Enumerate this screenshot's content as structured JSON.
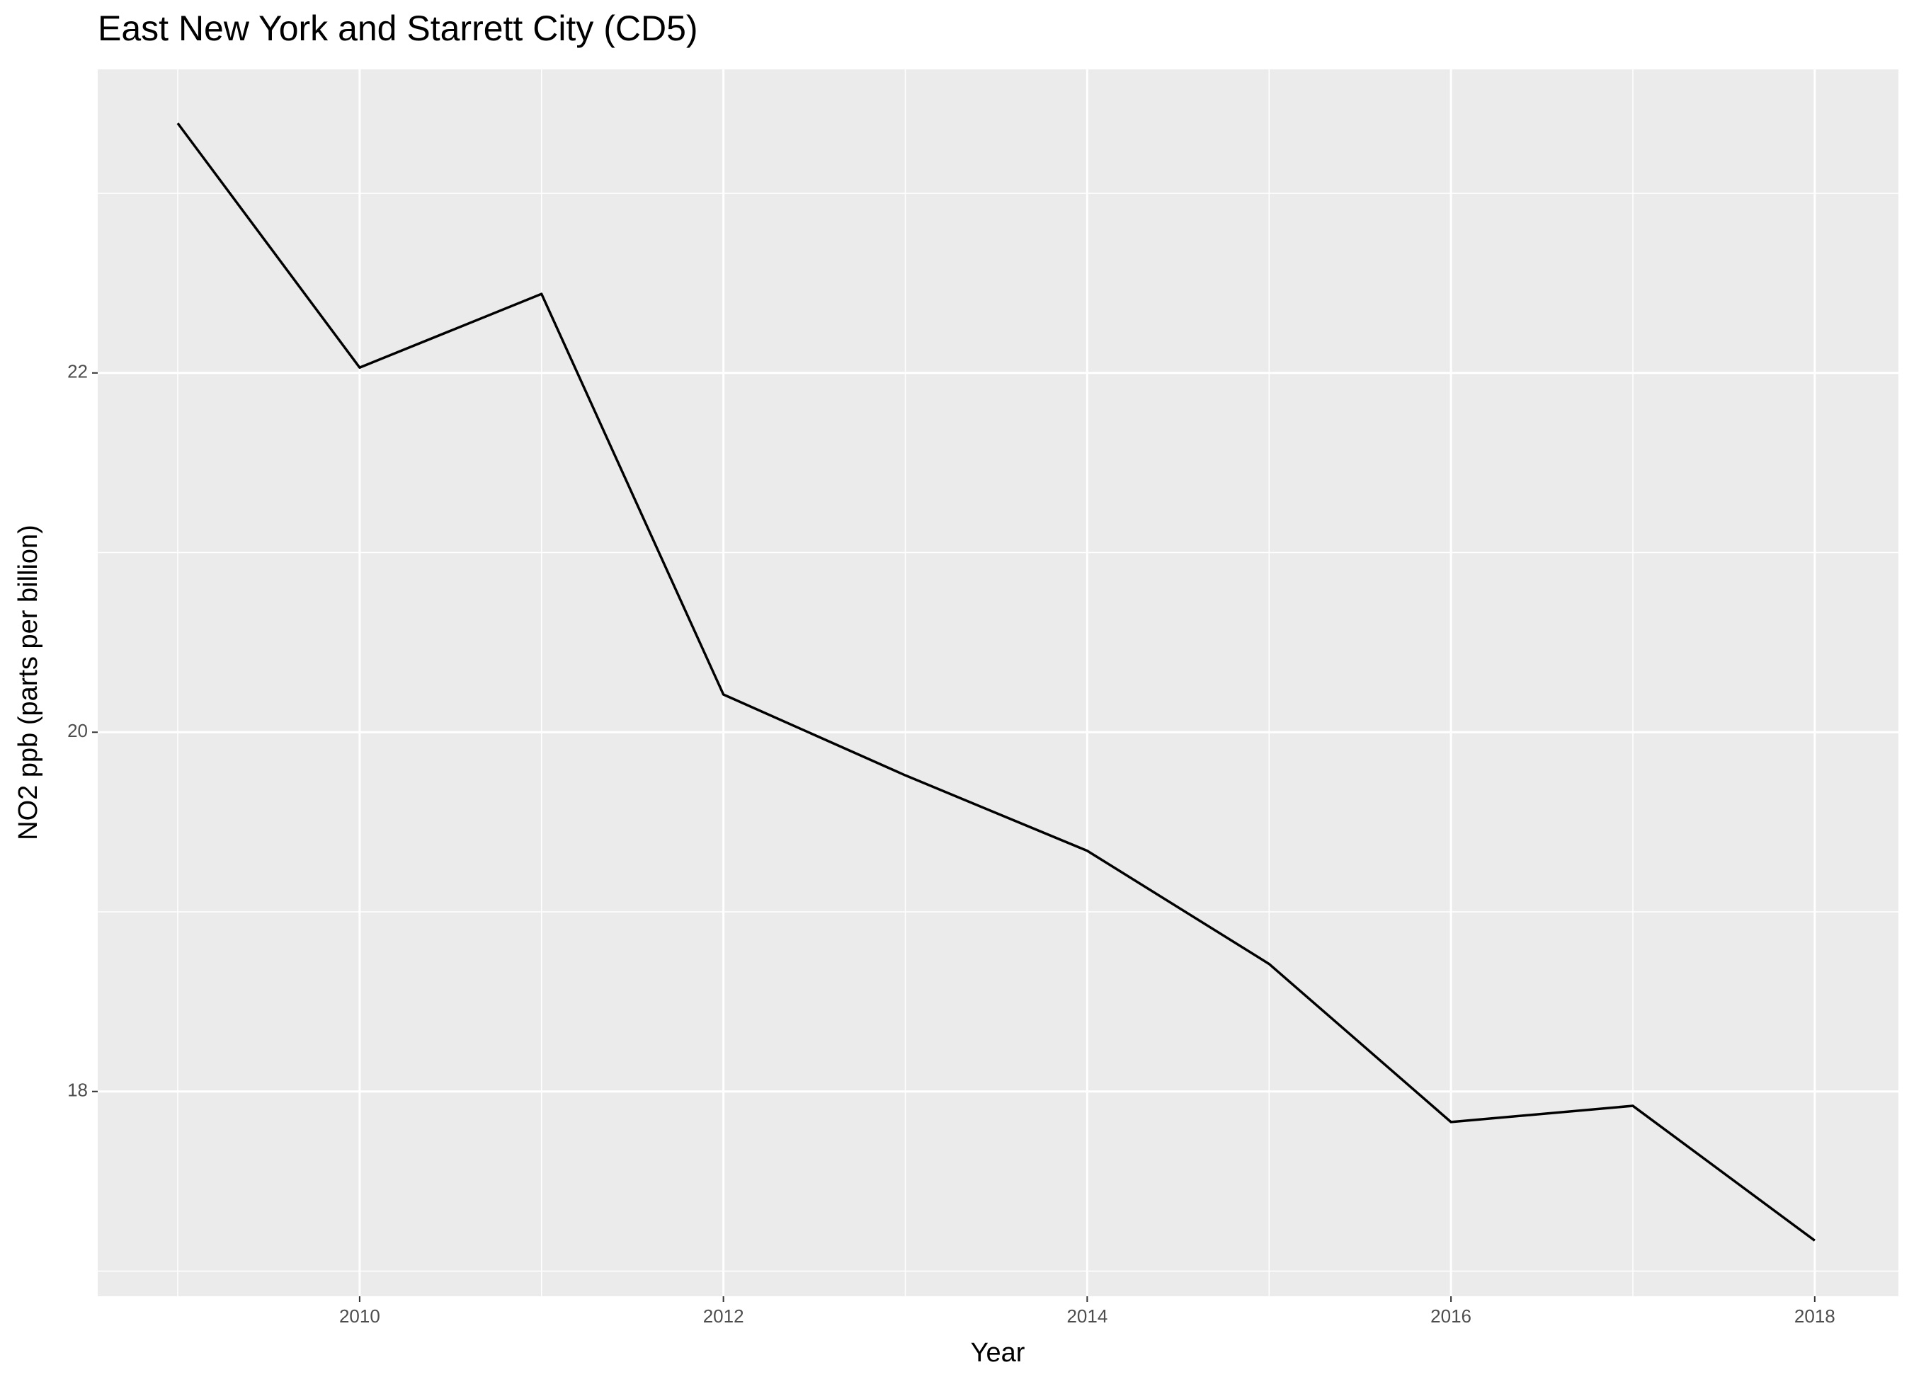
{
  "chart_data": {
    "type": "line",
    "title": "East New York and Starrett City (CD5)",
    "x_label": "Year",
    "y_label": "NO2 ppb (parts per billion)",
    "x": [
      2009,
      2010,
      2011,
      2012,
      2013,
      2014,
      2015,
      2016,
      2017,
      2018
    ],
    "series": [
      {
        "color": "#000000",
        "values": [
          23.39,
          22.03,
          22.44,
          20.21,
          19.76,
          19.34,
          18.71,
          17.83,
          17.92,
          17.17
        ]
      }
    ],
    "xlim": [
      2008.56,
      2018.46
    ],
    "ylim": [
      16.86,
      23.69
    ],
    "xticks": [
      2010,
      2012,
      2014,
      2016,
      2018
    ],
    "yticks": [
      18,
      20,
      22
    ],
    "grid": true
  }
}
